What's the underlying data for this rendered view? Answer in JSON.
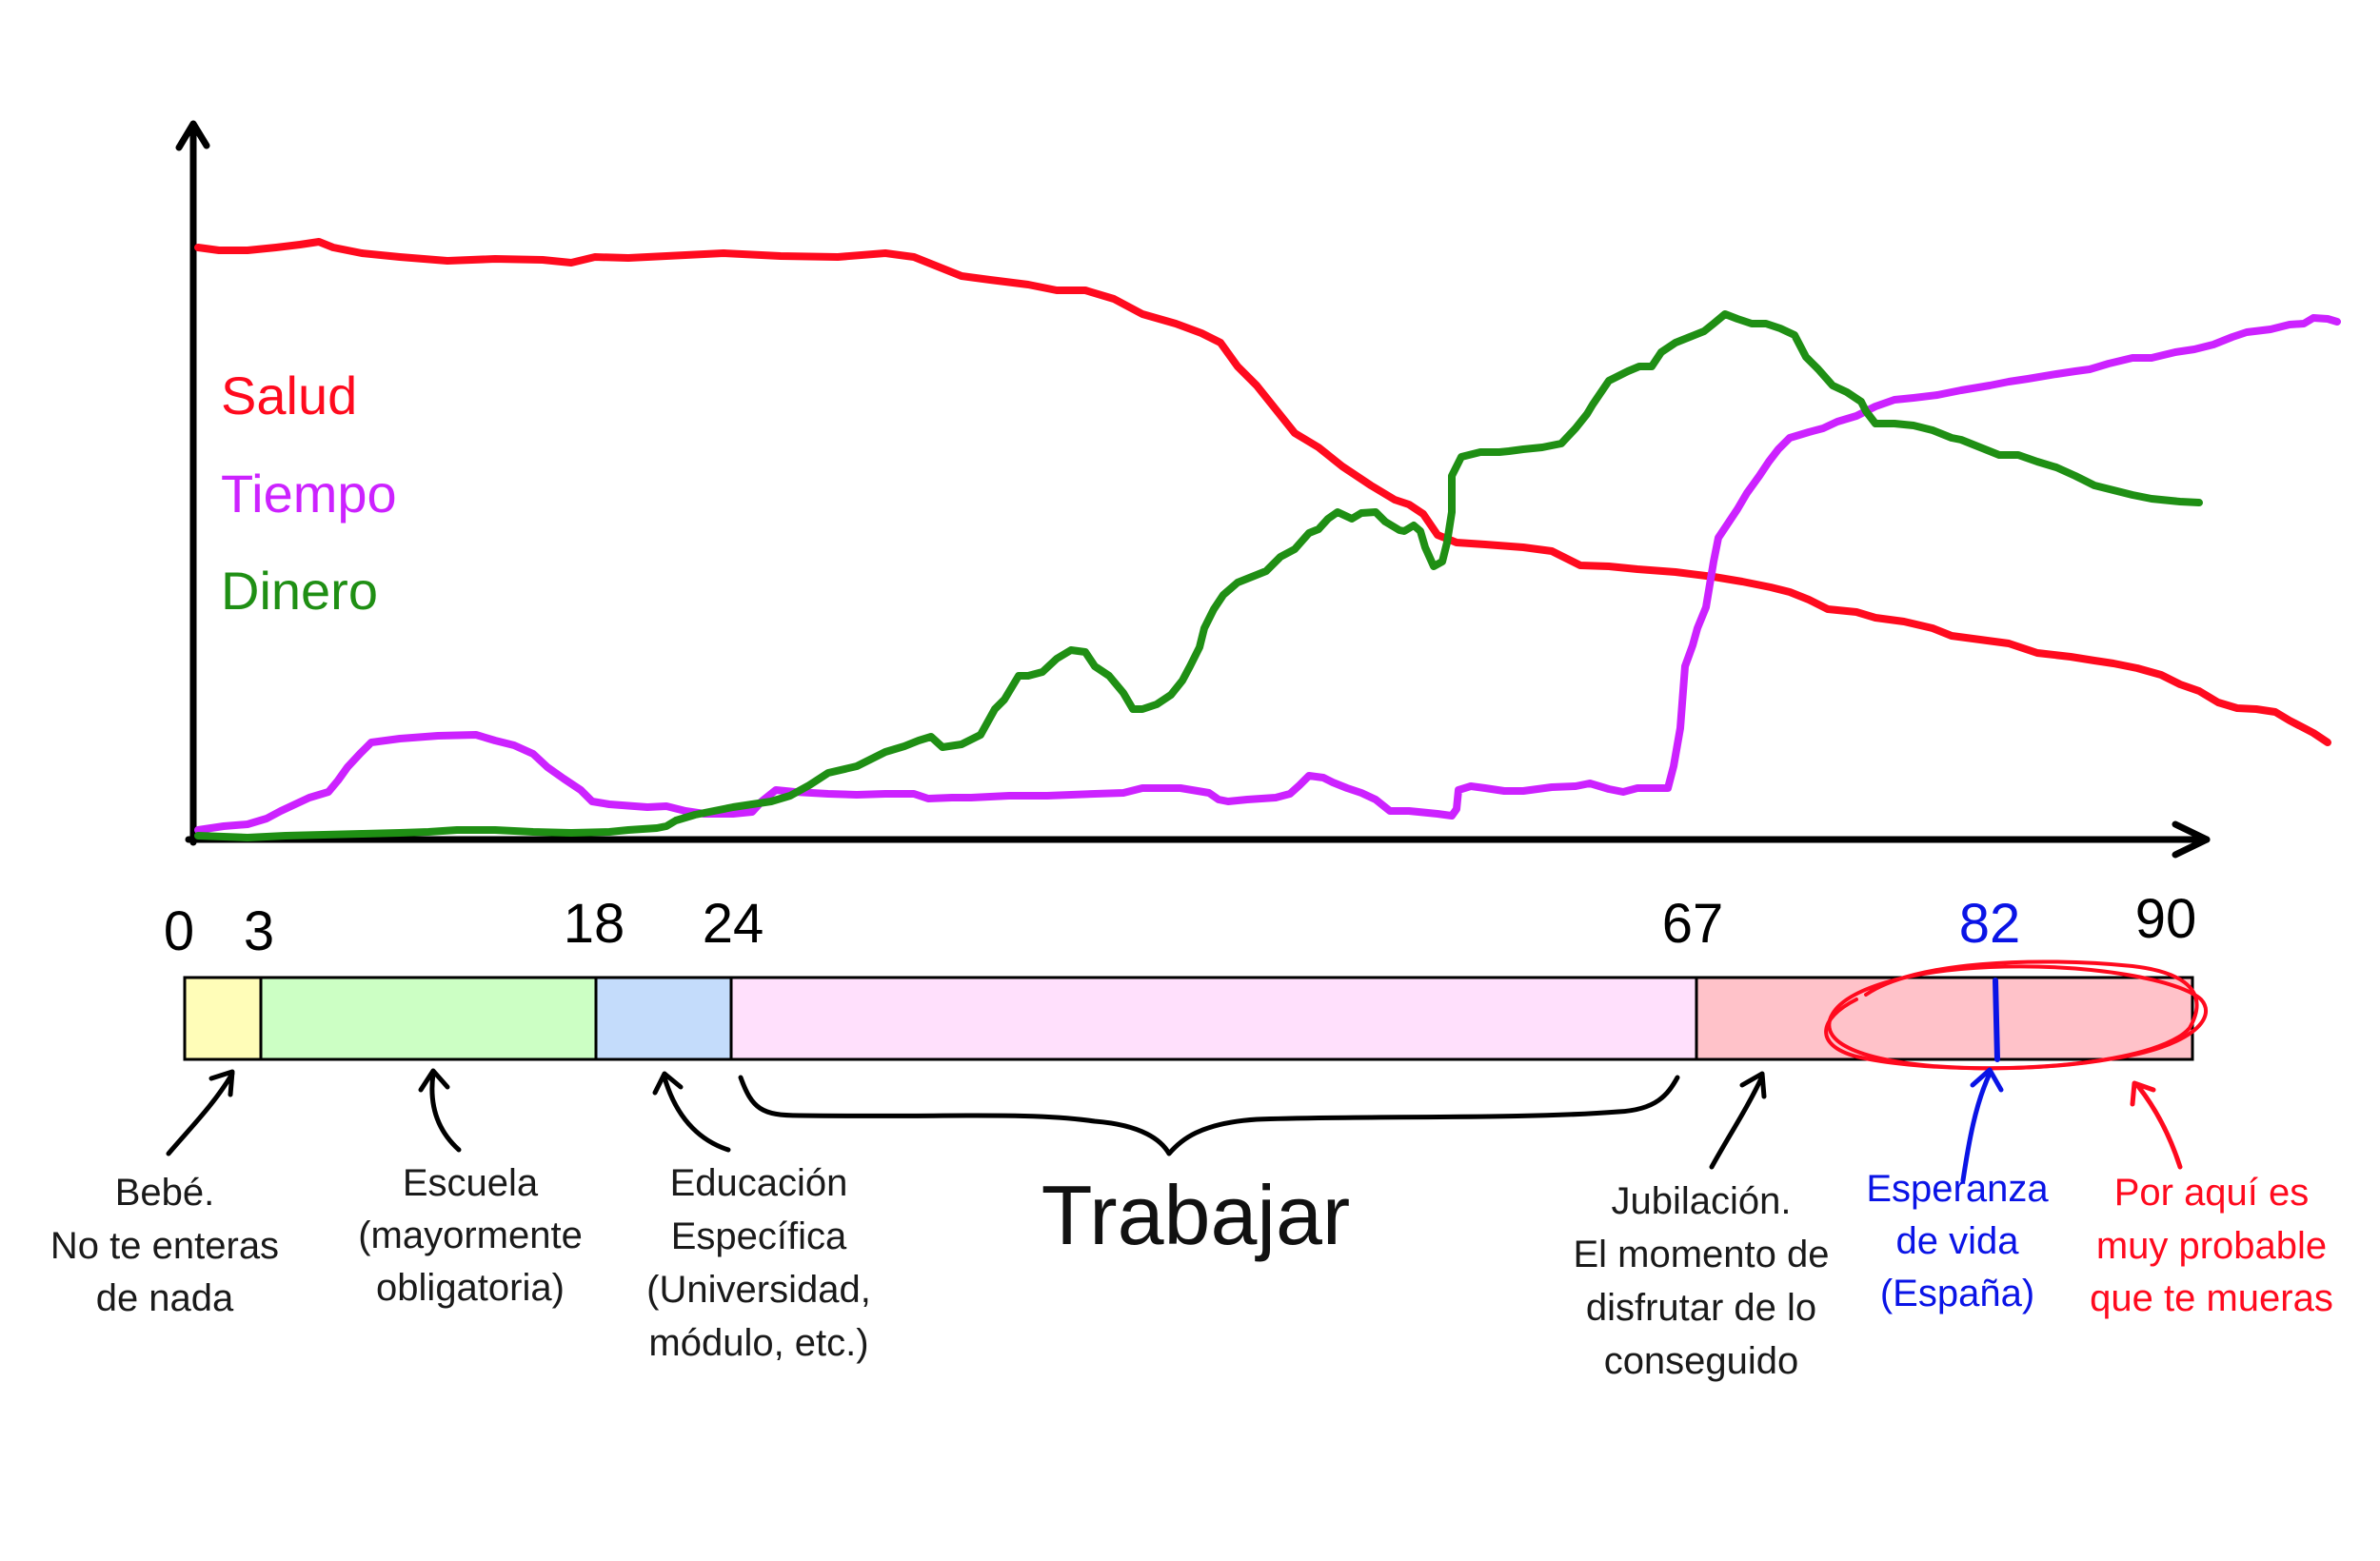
{
  "legend": [
    {
      "label": "Salud",
      "color": "#ff0a1e"
    },
    {
      "label": "Tiempo",
      "color": "#cc22ff"
    },
    {
      "label": "Dinero",
      "color": "#1f8f14"
    }
  ],
  "curves": {
    "salud": {
      "color": "#ff0a1e"
    },
    "tiempo": {
      "color": "#cc22ff"
    },
    "dinero": {
      "color": "#1f8f14"
    }
  },
  "ages": [
    {
      "label": "0"
    },
    {
      "label": "3"
    },
    {
      "label": "18"
    },
    {
      "label": "24"
    },
    {
      "label": "67"
    },
    {
      "label": "82",
      "color": "#0a14e6"
    },
    {
      "label": "90"
    }
  ],
  "segments": [
    {
      "name": "bebe",
      "color": "#fffdb8"
    },
    {
      "name": "escuela",
      "color": "#ccffc4"
    },
    {
      "name": "educacion",
      "color": "#c4dcfb"
    },
    {
      "name": "trabajar",
      "color": "#ffe0fc"
    },
    {
      "name": "jubilacion",
      "color": "#ffc2c9"
    }
  ],
  "annotations": {
    "bebe": [
      "Bebé.",
      "No te enteras",
      "de nada"
    ],
    "escuela": [
      "Escuela",
      "(mayormente",
      "obligatoria)"
    ],
    "educacion": [
      "Educación",
      "Específica",
      "(Universidad,",
      "módulo, etc.)"
    ],
    "trabajar": "Trabajar",
    "jubilacion": [
      "Jubilación.",
      "El momento de",
      "disfrutar de lo",
      "conseguido"
    ],
    "esperanza": [
      "Esperanza",
      "de vida",
      "(España)"
    ],
    "muerte": [
      "Por aquí es",
      "muy probable",
      "que te mueras"
    ]
  },
  "colors": {
    "ink": "#000000",
    "blue": "#0a14e6",
    "red": "#ff0a1e"
  }
}
